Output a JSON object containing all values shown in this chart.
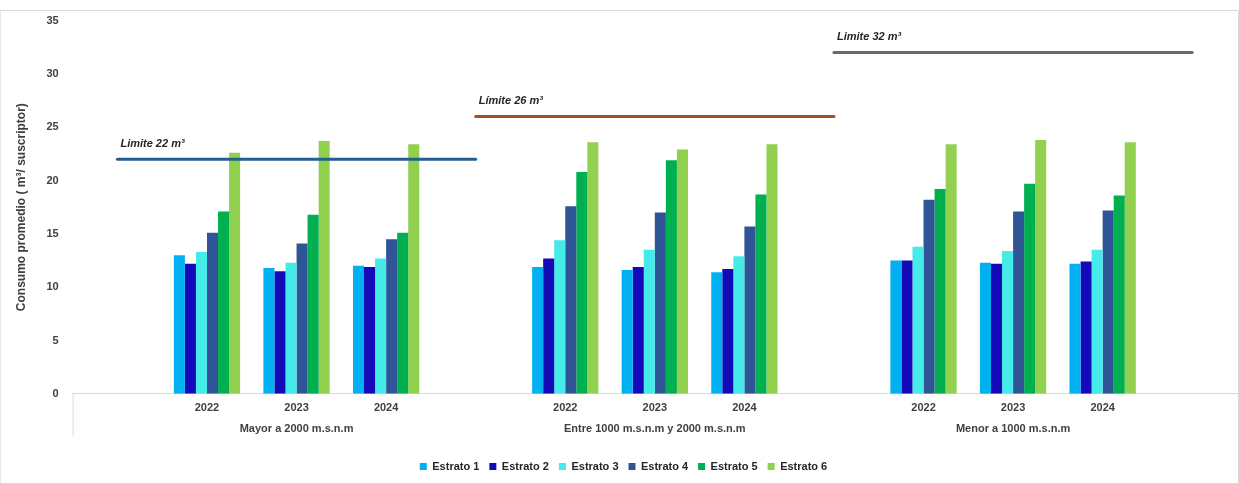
{
  "chart_data": {
    "type": "bar",
    "ylabel": "Consumo promedio ( m³/ suscriptor)",
    "categories": [
      null,
      "2022",
      "2023",
      "2024",
      null,
      "2022",
      "2023",
      "2024",
      null,
      "2022",
      "2023",
      "2024",
      null
    ],
    "series": [
      {
        "name": "Estrato 1",
        "color": "#00b0f0",
        "values": [
          null,
          13.0,
          11.8,
          12.0,
          null,
          11.9,
          11.6,
          11.4,
          null,
          12.5,
          12.3,
          12.2,
          null
        ]
      },
      {
        "name": "Estrato 2",
        "color": "#1409b8",
        "values": [
          null,
          12.2,
          11.5,
          11.9,
          null,
          12.7,
          11.9,
          11.7,
          null,
          12.5,
          12.2,
          12.4,
          null
        ]
      },
      {
        "name": "Estrato 3",
        "color": "#45ebe8",
        "values": [
          null,
          13.3,
          12.3,
          12.7,
          null,
          14.4,
          13.5,
          12.9,
          null,
          13.8,
          13.4,
          13.5,
          null
        ]
      },
      {
        "name": "Estrato 4",
        "color": "#2f5597",
        "values": [
          null,
          15.1,
          14.1,
          14.5,
          null,
          17.6,
          17.0,
          15.7,
          null,
          18.2,
          17.1,
          17.2,
          null
        ]
      },
      {
        "name": "Estrato 5",
        "color": "#00b050",
        "values": [
          null,
          17.1,
          16.8,
          15.1,
          null,
          20.8,
          21.9,
          18.7,
          null,
          19.2,
          19.7,
          18.6,
          null
        ]
      },
      {
        "name": "Estrato 6",
        "color": "#92d050",
        "values": [
          null,
          22.6,
          23.7,
          23.4,
          null,
          23.6,
          22.9,
          23.4,
          null,
          23.4,
          23.8,
          23.6,
          null
        ]
      }
    ],
    "ylim": [
      0,
      35
    ],
    "yticks": [
      0,
      5,
      10,
      15,
      20,
      25,
      30,
      35
    ],
    "grid": false,
    "legend": "bottom",
    "ref_lines": [
      {
        "axis": "y",
        "value": 22,
        "label": "Limite 22 m³",
        "color": "#255e91"
      },
      {
        "axis": "y",
        "value": 26,
        "label": "Límite 26 m³",
        "color": "#a5501e"
      },
      {
        "axis": "y",
        "value": 32,
        "label": "Limite 32 m³",
        "color": "#6b6b6b"
      }
    ],
    "annotations": [
      "Mayor a 2000 m.s.n.m",
      "Entre 1000 m.s.n.m y 2000 m.s.n.m",
      "Menor a 1000 m.s.n.m"
    ]
  }
}
